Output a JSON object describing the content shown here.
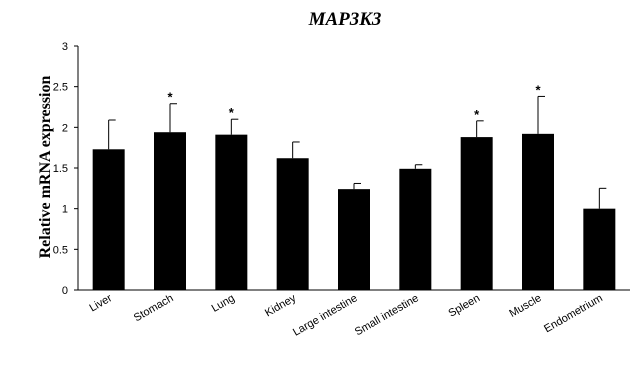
{
  "chart_data": {
    "type": "bar",
    "title": "MAP3K3",
    "ylabel": "Relative mRNA expression",
    "xlabel": "",
    "ylim": [
      0,
      3
    ],
    "yticks": [
      "0",
      "0.5",
      "1",
      "1.5",
      "2",
      "2.5",
      "3"
    ],
    "categories": [
      "Liver",
      "Stomach",
      "Lung",
      "Kidney",
      "Large intestine",
      "Small intestine",
      "Spleen",
      "Muscle",
      "Endometrium"
    ],
    "values": [
      1.73,
      1.94,
      1.91,
      1.62,
      1.24,
      1.49,
      1.88,
      1.92,
      1.0
    ],
    "error_upper": [
      0.36,
      0.35,
      0.19,
      0.2,
      0.07,
      0.05,
      0.2,
      0.46,
      0.25
    ],
    "significance": [
      "",
      "*",
      "*",
      "",
      "",
      "",
      "*",
      "*",
      ""
    ],
    "bar_color": "#000000",
    "grid": false,
    "legend": "none"
  }
}
